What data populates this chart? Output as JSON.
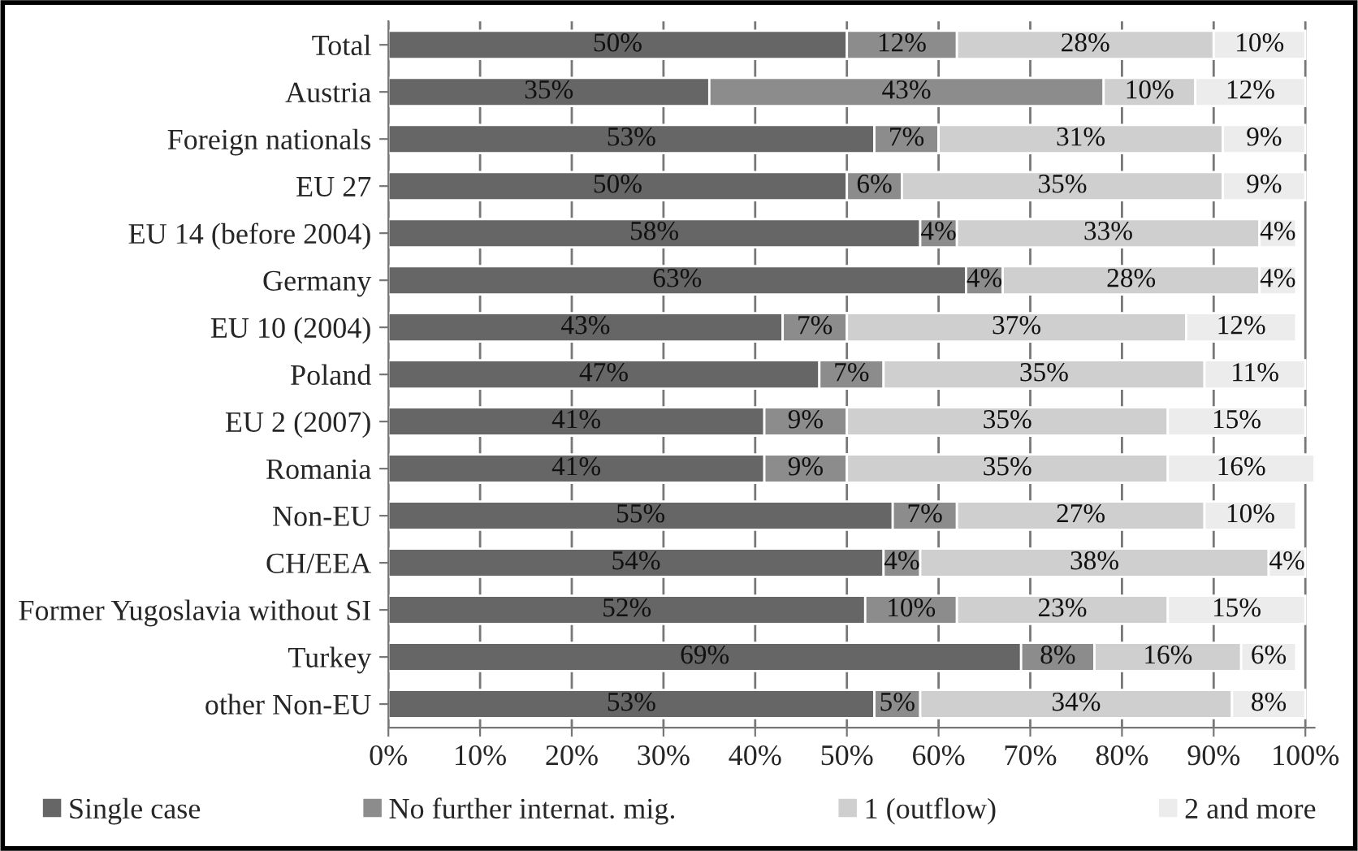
{
  "chart_data": {
    "type": "bar",
    "orientation": "horizontal",
    "stacked": true,
    "categories": [
      "Total",
      "Austria",
      "Foreign nationals",
      "EU 27",
      "EU 14 (before 2004)",
      "Germany",
      "EU 10 (2004)",
      "Poland",
      "EU 2 (2007)",
      "Romania",
      "Non-EU",
      "CH/EEA",
      "Former Yugoslavia without SI",
      "Turkey",
      "other Non-EU"
    ],
    "series": [
      {
        "name": "Single case",
        "color": "#666666",
        "values": [
          50,
          35,
          53,
          50,
          58,
          63,
          43,
          47,
          41,
          41,
          55,
          54,
          52,
          69,
          53
        ],
        "value_labels": [
          "50%",
          "35%",
          "53%",
          "50%",
          "58%",
          "63%",
          "43%",
          "47%",
          "41%",
          "41%",
          "55%",
          "54%",
          "52%",
          "69%",
          "53%"
        ]
      },
      {
        "name": "No further internat. mig.",
        "color": "#8c8c8c",
        "values": [
          12,
          43,
          7,
          6,
          4,
          4,
          7,
          7,
          9,
          9,
          7,
          4,
          10,
          8,
          5
        ],
        "value_labels": [
          "12%",
          "43%",
          "7%",
          "6%",
          "4%",
          "4%",
          "7%",
          "7%",
          "9%",
          "9%",
          "7%",
          "4%",
          "10%",
          "8%",
          "5%"
        ]
      },
      {
        "name": "1 (outflow)",
        "color": "#cfcfcf",
        "values": [
          28,
          10,
          31,
          35,
          33,
          28,
          37,
          35,
          35,
          35,
          27,
          38,
          23,
          16,
          34
        ],
        "value_labels": [
          "28%",
          "10%",
          "31%",
          "35%",
          "33%",
          "28%",
          "37%",
          "35%",
          "35%",
          "35%",
          "27%",
          "38%",
          "23%",
          "16%",
          "34%"
        ]
      },
      {
        "name": "2 and more",
        "color": "#ececec",
        "values": [
          10,
          12,
          9,
          9,
          4,
          4,
          12,
          11,
          15,
          16,
          10,
          4,
          15,
          6,
          8
        ],
        "value_labels": [
          "10%",
          "12%",
          "9%",
          "9%",
          "4%",
          "4%",
          "12%",
          "11%",
          "15%",
          "16%",
          "10%",
          "4%",
          "15%",
          "6%",
          "8%"
        ]
      }
    ],
    "xlim": [
      0,
      101
    ],
    "xticks": [
      {
        "value": 0,
        "label": "0%"
      },
      {
        "value": 10,
        "label": "10%"
      },
      {
        "value": 20,
        "label": "20%"
      },
      {
        "value": 30,
        "label": "30%"
      },
      {
        "value": 40,
        "label": "40%"
      },
      {
        "value": 50,
        "label": "50%"
      },
      {
        "value": 60,
        "label": "60%"
      },
      {
        "value": 70,
        "label": "70%"
      },
      {
        "value": 80,
        "label": "80%"
      },
      {
        "value": 90,
        "label": "90%"
      },
      {
        "value": 100,
        "label": "100%"
      }
    ],
    "grid": "x",
    "legend": "bottom"
  }
}
